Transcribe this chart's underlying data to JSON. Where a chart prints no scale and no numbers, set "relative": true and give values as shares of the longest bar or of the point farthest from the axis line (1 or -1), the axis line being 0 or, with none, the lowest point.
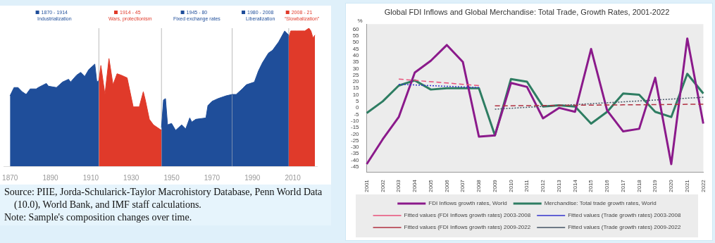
{
  "chart_data": [
    {
      "type": "area",
      "relative": true,
      "legend": "top",
      "xlim": [
        1867,
        2022
      ],
      "xticks": [
        1870,
        1890,
        1910,
        1930,
        1950,
        1970,
        1990,
        2010
      ],
      "series": [
        {
          "name": "1870 - 1914\nIndustrialization",
          "color": "#1f4e9a",
          "x": [
            1870,
            1872,
            1874,
            1876,
            1878,
            1880,
            1883,
            1884,
            1888,
            1889,
            1893,
            1896,
            1899,
            1900,
            1903,
            1905,
            1907,
            1909,
            1912,
            1913,
            1914
          ],
          "values": [
            0.51,
            0.57,
            0.57,
            0.54,
            0.52,
            0.56,
            0.56,
            0.57,
            0.6,
            0.58,
            0.57,
            0.61,
            0.63,
            0.61,
            0.66,
            0.68,
            0.65,
            0.7,
            0.74,
            0.61,
            0.62
          ]
        },
        {
          "name": "1914 - 45\nWars, protectionism",
          "color": "#e03a2a",
          "x": [
            1914,
            1915,
            1917,
            1919,
            1921,
            1923,
            1925,
            1928,
            1931,
            1934,
            1936,
            1937,
            1939,
            1941,
            1945
          ],
          "values": [
            0.62,
            0.73,
            0.52,
            0.78,
            0.59,
            0.67,
            0.66,
            0.64,
            0.43,
            0.43,
            0.54,
            0.48,
            0.34,
            0.3,
            0.26
          ]
        },
        {
          "name": "1945 - 80\nFixed exchange rates",
          "color": "#1f4e9a",
          "x": [
            1945,
            1946,
            1947,
            1948,
            1950,
            1952,
            1955,
            1957,
            1959,
            1960,
            1962,
            1967,
            1968,
            1970,
            1973,
            1977,
            1980
          ],
          "values": [
            0.28,
            0.48,
            0.49,
            0.3,
            0.31,
            0.26,
            0.3,
            0.27,
            0.35,
            0.32,
            0.34,
            0.35,
            0.44,
            0.47,
            0.49,
            0.51,
            0.52
          ]
        },
        {
          "name": "1980 - 2008\nLiberalization",
          "color": "#1f4e9a",
          "x": [
            1980,
            1982,
            1985,
            1987,
            1991,
            1993,
            1995,
            1998,
            2000,
            2003,
            2006,
            2008
          ],
          "values": [
            0.52,
            0.52,
            0.56,
            0.59,
            0.61,
            0.69,
            0.75,
            0.82,
            0.84,
            0.9,
            0.98,
            0.95
          ]
        },
        {
          "name": "2008 - 21\n“Slowbalization”",
          "color": "#e03a2a",
          "x": [
            2008,
            2009,
            2012,
            2016,
            2018,
            2019,
            2020,
            2021
          ],
          "values": [
            0.93,
            0.98,
            0.98,
            0.98,
            1.0,
            0.98,
            0.93,
            0.95
          ]
        }
      ],
      "ref_lines": [
        {
          "axis": "x",
          "value": 1914,
          "color": "#bbbbbb"
        },
        {
          "axis": "x",
          "value": 1945,
          "color": "#bbbbbb"
        },
        {
          "axis": "x",
          "value": 1980,
          "color": "#bbbbbb"
        },
        {
          "axis": "x",
          "value": 2008,
          "color": "#bbbbbb"
        }
      ],
      "annotations": [
        "Source: PIIE, Jorda-Schularick-Taylor Macrohistory Database, Penn World  Data (10.0), World Bank, and IMF staff calculations.",
        "Note: Sample's composition changes over time."
      ]
    },
    {
      "type": "line",
      "title": "Global FDI Inflows and Global Merchandise: Total Trade, Growth Rates, 2001-2022",
      "ylabel": "%",
      "categories": [
        "2001",
        "2002",
        "2003",
        "2004",
        "2005",
        "2006",
        "2007",
        "2008",
        "2009",
        "2010",
        "2011",
        "2012",
        "2013",
        "2014",
        "2015",
        "2016",
        "2017",
        "2018",
        "2019",
        "2020",
        "2021",
        "2022"
      ],
      "ylim": [
        -49,
        64
      ],
      "yticks": [
        -45,
        -40,
        -35,
        -30,
        -25,
        -20,
        -15,
        -10,
        -5,
        0,
        5,
        10,
        15,
        20,
        25,
        30,
        35,
        40,
        45,
        50,
        55,
        60
      ],
      "marker": "none",
      "legend": "bottom",
      "series": [
        {
          "name": "FDI Inflows growth rates, World",
          "color": "#8b1a8b",
          "line_style": "solid",
          "values": [
            -43,
            -24,
            -7,
            27,
            36,
            48,
            35,
            -22,
            -21,
            19,
            16,
            -8,
            0,
            -3,
            45,
            -2,
            -18,
            -16,
            23,
            -43,
            53,
            -12
          ]
        },
        {
          "name": "Merchandise: Total trade growth rates, World",
          "color": "#2e7d62",
          "line_style": "solid",
          "values": [
            -4,
            5,
            17,
            21,
            14,
            15,
            15,
            15,
            -21,
            22,
            20,
            1,
            2,
            1,
            -12,
            -3,
            11,
            10,
            -3,
            -7,
            26,
            11
          ]
        },
        {
          "name": "Fitted values (FDI Inflows growth rates) 2003-2008",
          "color": "#e8507a",
          "line_style": "dashed",
          "values": [
            null,
            null,
            22,
            21,
            20,
            19,
            18,
            17,
            null,
            null,
            null,
            null,
            null,
            null,
            null,
            null,
            null,
            null,
            null,
            null,
            null,
            null
          ]
        },
        {
          "name": "Fitted values (Trade growth rates) 2003-2008",
          "color": "#3333cc",
          "line_style": "dotted",
          "values": [
            null,
            null,
            18,
            17.5,
            17,
            16.5,
            16,
            15.5,
            null,
            null,
            null,
            null,
            null,
            null,
            null,
            null,
            null,
            null,
            null,
            null,
            null,
            null
          ]
        },
        {
          "name": "Fitted values (FDI Inflows growth rates) 2009-2022",
          "color": "#b03040",
          "line_style": "dashed",
          "values": [
            null,
            null,
            null,
            null,
            null,
            null,
            null,
            null,
            1.5,
            1.6,
            1.7,
            1.8,
            1.9,
            2,
            2.1,
            2.2,
            2.3,
            2.4,
            2.5,
            2.6,
            2.7,
            2.8
          ]
        },
        {
          "name": "Fitted values (Trade growth rates) 2009-2022",
          "color": "#445566",
          "line_style": "dotted",
          "values": [
            null,
            null,
            null,
            null,
            null,
            null,
            null,
            null,
            -1,
            -0.3,
            0.4,
            1.1,
            1.8,
            2.5,
            3.2,
            3.9,
            4.6,
            5.3,
            6,
            6.7,
            7.4,
            8.1
          ]
        }
      ]
    }
  ]
}
